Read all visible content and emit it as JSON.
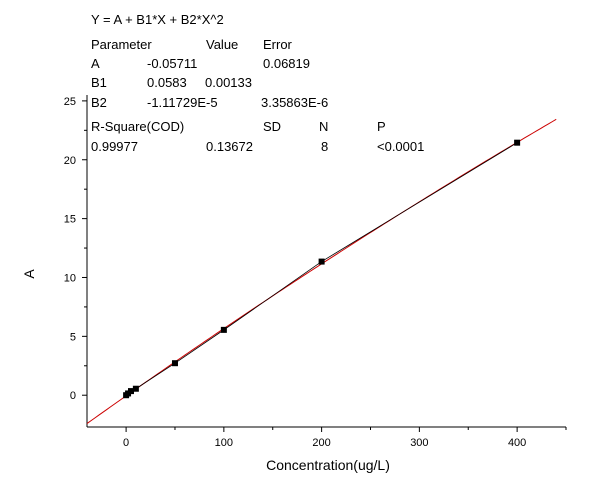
{
  "chart_data": {
    "type": "scatter",
    "title": "",
    "xlabel": "Concentration(ug/L)",
    "ylabel": "A",
    "xlim": [
      -40,
      450
    ],
    "ylim": [
      -2.7,
      25.5
    ],
    "x_ticks": [
      0,
      100,
      200,
      300,
      400
    ],
    "y_ticks": [
      0,
      5,
      10,
      15,
      20,
      25
    ],
    "grid": false,
    "points": {
      "x": [
        0,
        2,
        5,
        10,
        50,
        100,
        200,
        400
      ],
      "y": [
        0.0,
        0.15,
        0.35,
        0.55,
        2.72,
        5.55,
        11.35,
        21.45
      ]
    },
    "fit": {
      "model": "Y = A + B1*X + B2*X^2",
      "A": -0.05711,
      "B1": 0.0583,
      "B2": -1.11729e-05,
      "x_range": [
        -40,
        440
      ]
    },
    "linear_line": {
      "x_range": [
        0,
        400
      ]
    },
    "colors": {
      "fit_line": "#cc0000",
      "points": "#000000",
      "axes": "#000000"
    },
    "annotation": {
      "equation": "Y = A + B1*X + B2*X^2",
      "header": [
        "Parameter",
        "Value",
        "Error"
      ],
      "rows": [
        [
          "A",
          "-0.05711",
          "0.06819"
        ],
        [
          "B1",
          "0.0583",
          "0.00133"
        ],
        [
          "B2",
          "-1.11729E-5",
          "3.35863E-6"
        ]
      ],
      "stats_header": [
        "R-Square(COD)",
        "SD",
        "N",
        "P"
      ],
      "stats_values": [
        "0.99977",
        "0.13672",
        "8",
        "<0.0001"
      ]
    }
  }
}
